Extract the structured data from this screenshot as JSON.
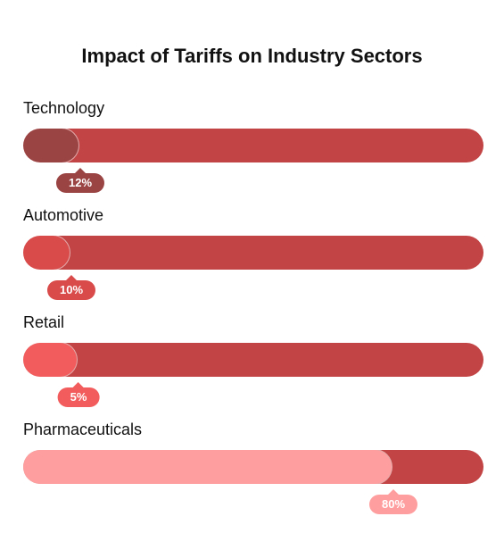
{
  "chart_data": {
    "type": "bar",
    "title": "Impact of Tariffs on Industry Sectors",
    "categories": [
      "Technology",
      "Automotive",
      "Retail",
      "Pharmaceuticals"
    ],
    "values": [
      12,
      10,
      5,
      80
    ],
    "value_labels": [
      "12%",
      "10%",
      "5%",
      "80%"
    ],
    "unit": "%",
    "xlim": [
      0,
      100
    ],
    "track_color": "#c24444",
    "colors": [
      "#9b4444",
      "#d94a4a",
      "#f25c5c",
      "#ff9e9e"
    ]
  }
}
